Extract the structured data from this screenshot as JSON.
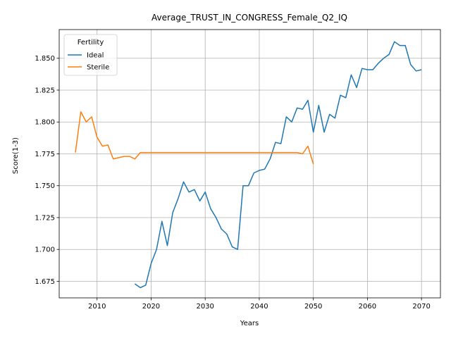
{
  "chart_data": {
    "type": "line",
    "title": "Average_TRUST_IN_CONGRESS_Female_Q2_IQ",
    "xlabel": "Years",
    "ylabel": "Score(1-3)",
    "xlim": [
      2003,
      2073.5
    ],
    "ylim": [
      1.662,
      1.8725
    ],
    "xticks": [
      2010,
      2020,
      2030,
      2040,
      2050,
      2060,
      2070
    ],
    "yticks": [
      1.675,
      1.7,
      1.725,
      1.75,
      1.775,
      1.8,
      1.825,
      1.85
    ],
    "grid": true,
    "legend": {
      "title": "Fertility",
      "position": "top-left"
    },
    "series": [
      {
        "name": "Ideal",
        "color": "#1f77b4",
        "x": [
          2017,
          2018,
          2019,
          2020,
          2021,
          2022,
          2023,
          2024,
          2025,
          2026,
          2027,
          2028,
          2029,
          2030,
          2031,
          2032,
          2033,
          2034,
          2035,
          2036,
          2037,
          2038,
          2039,
          2040,
          2041,
          2042,
          2043,
          2044,
          2045,
          2046,
          2047,
          2048,
          2049,
          2050,
          2051,
          2052,
          2053,
          2054,
          2055,
          2056,
          2057,
          2058,
          2059,
          2060,
          2061,
          2062,
          2063,
          2064,
          2065,
          2066,
          2067,
          2068,
          2069,
          2070
        ],
        "y": [
          1.673,
          1.67,
          1.672,
          1.689,
          1.7,
          1.722,
          1.703,
          1.729,
          1.74,
          1.753,
          1.745,
          1.747,
          1.738,
          1.745,
          1.732,
          1.725,
          1.716,
          1.712,
          1.702,
          1.7,
          1.75,
          1.75,
          1.76,
          1.762,
          1.763,
          1.771,
          1.784,
          1.783,
          1.804,
          1.8,
          1.811,
          1.81,
          1.817,
          1.792,
          1.813,
          1.792,
          1.806,
          1.803,
          1.821,
          1.819,
          1.837,
          1.827,
          1.842,
          1.841,
          1.841,
          1.846,
          1.85,
          1.853,
          1.863,
          1.86,
          1.86,
          1.845,
          1.84,
          1.841
        ]
      },
      {
        "name": "Sterile",
        "color": "#ff7f0e",
        "x": [
          2006,
          2007,
          2008,
          2009,
          2010,
          2011,
          2012,
          2013,
          2014,
          2015,
          2016,
          2017,
          2018,
          2019,
          2020,
          2021,
          2022,
          2023,
          2024,
          2025,
          2026,
          2027,
          2028,
          2029,
          2030,
          2031,
          2032,
          2033,
          2034,
          2035,
          2036,
          2037,
          2038,
          2039,
          2040,
          2041,
          2042,
          2043,
          2044,
          2045,
          2046,
          2047,
          2048,
          2049,
          2050
        ],
        "y": [
          1.776,
          1.808,
          1.8,
          1.804,
          1.788,
          1.781,
          1.782,
          1.771,
          1.772,
          1.773,
          1.773,
          1.771,
          1.776,
          1.776,
          1.776,
          1.776,
          1.776,
          1.776,
          1.776,
          1.776,
          1.776,
          1.776,
          1.776,
          1.776,
          1.776,
          1.776,
          1.776,
          1.776,
          1.776,
          1.776,
          1.776,
          1.776,
          1.776,
          1.776,
          1.776,
          1.776,
          1.776,
          1.776,
          1.776,
          1.776,
          1.776,
          1.776,
          1.775,
          1.781,
          1.767
        ]
      }
    ]
  }
}
